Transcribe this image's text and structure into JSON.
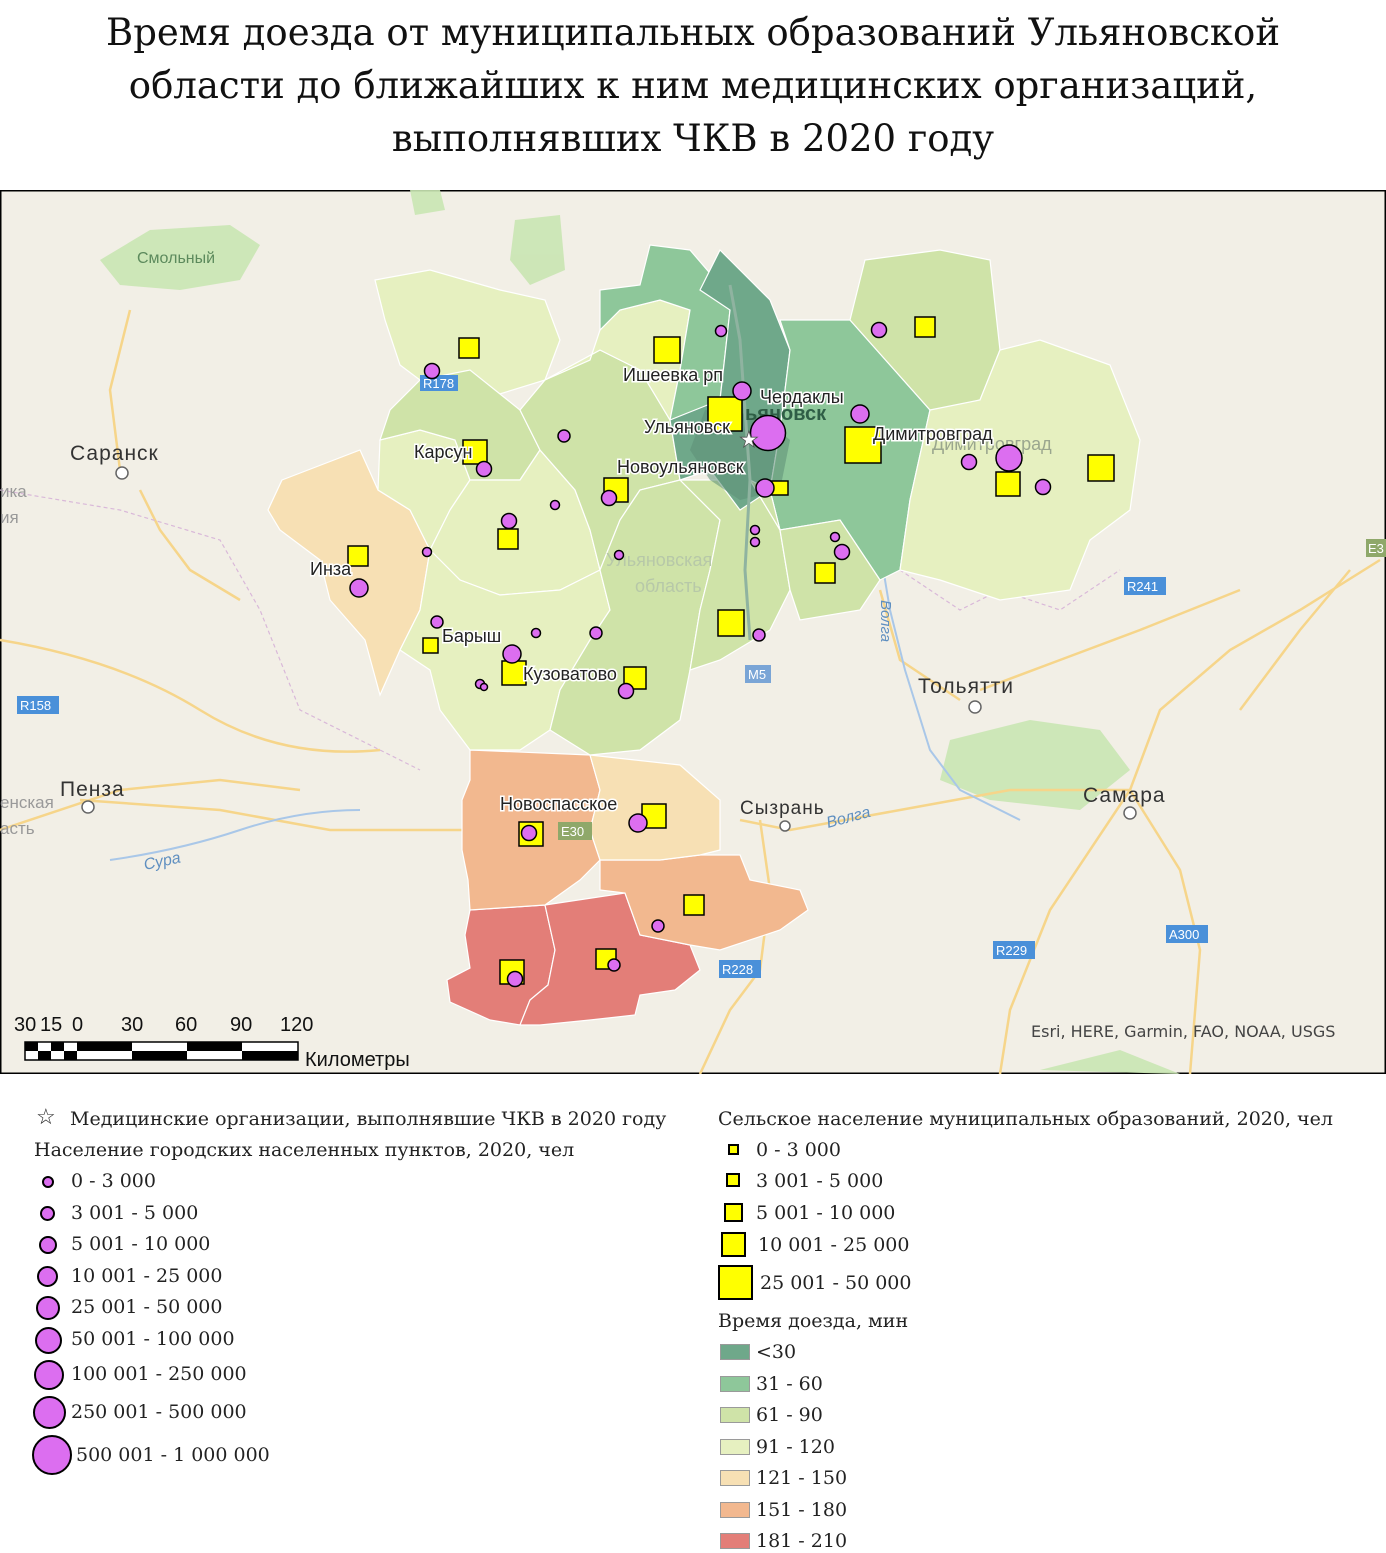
{
  "title_lines": [
    "Время доезда от муниципальных образований Ульяновской",
    "области до ближайших к ним медицинских организаций,",
    "выполнявших ЧКВ в 2020 году"
  ],
  "map": {
    "place_labels": {
      "smolny": "Смольный",
      "saransk": "Саранск",
      "inza": "Инза",
      "karsun": "Карсун",
      "baryshsh": "Барыш",
      "kuzovatovo": "Кузоватово",
      "ishevka": "Ишеевка рп",
      "cherdakly": "Чердаклы",
      "ulyanovsk": "Ульяновск",
      "ulyanovsk_city_big": "ьяновск",
      "novoulyanovsk": "Новоульяновск",
      "dimitrovgrad": "Димитровград",
      "dimitrovgrad_ghost": "Димитровград",
      "region_ghost_1": "Ульяновская",
      "region_ghost_2": "область",
      "novospasskoe": "Новоспасское",
      "syzran": "Сызрань",
      "tolyatti": "Тольятти",
      "samara": "Самара",
      "penza": "Пенза",
      "penza_region_1": "енская",
      "penza_region_2": "асть",
      "mordovia_1": "ика",
      "mordovia_2": "ия",
      "volga_1": "Волга",
      "volga_2": "Волга",
      "sura": "Сура"
    },
    "road_labels": [
      "R178",
      "R158",
      "R241",
      "M5",
      "E30",
      "R228",
      "R229",
      "A300",
      "E3"
    ],
    "attribution": "Esri, HERE, Garmin, FAO, NOAA, USGS",
    "scale": {
      "ticks": [
        "30",
        "15",
        "0",
        "30",
        "60",
        "90",
        "120"
      ],
      "unit": "Километры"
    }
  },
  "legend": {
    "star_label": "Медицинские организации, выполнявшие ЧКВ в 2020 году",
    "urban": {
      "title": "Население городских населенных пунктов, 2020, чел",
      "classes": [
        "0 - 3 000",
        "3 001 - 5 000",
        "5 001 - 10 000",
        "10 001 - 25 000",
        "25 001 - 50 000",
        "50 001 - 100 000",
        "100 001 - 250 000",
        "250 001 - 500 000",
        "500 001 - 1 000 000"
      ]
    },
    "rural": {
      "title": "Сельское население муниципальных образований, 2020, чел",
      "classes": [
        "0 - 3 000",
        "3 001 - 5 000",
        "5 001 - 10 000",
        "10 001 - 25 000",
        "25 001 - 50 000"
      ]
    },
    "travel_time": {
      "title": "Время доезда, мин",
      "classes": [
        {
          "label": "<30",
          "color": "#6fa88a"
        },
        {
          "label": "31 - 60",
          "color": "#8ec79a"
        },
        {
          "label": "61 - 90",
          "color": "#cfe3a8"
        },
        {
          "label": "91 - 120",
          "color": "#e6f0c0"
        },
        {
          "label": "121 - 150",
          "color": "#f7e0b4"
        },
        {
          "label": "151 - 180",
          "color": "#f2b88f"
        },
        {
          "label": "181 - 210",
          "color": "#e37e78"
        }
      ]
    },
    "colors": {
      "urban_circle": "#dc6ef0",
      "rural_square": "#ffff00"
    }
  }
}
